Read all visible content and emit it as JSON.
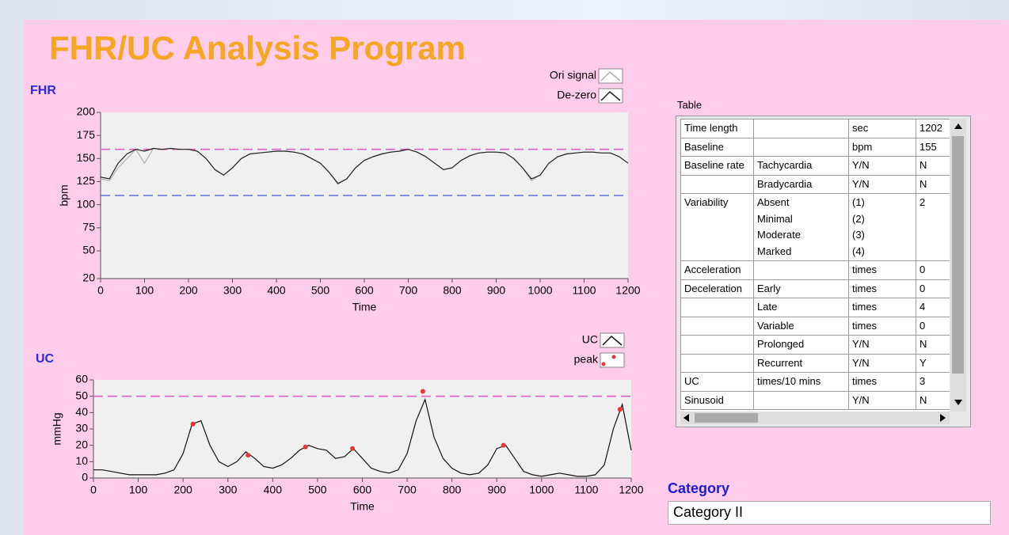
{
  "header": {
    "title": "FHR/UC Analysis Program"
  },
  "chart_data": [
    {
      "type": "line",
      "title": "FHR",
      "ylabel": "bpm",
      "xlabel": "Time",
      "xlim": [
        0,
        1200
      ],
      "ylim": [
        20,
        200
      ],
      "xticks": [
        0,
        100,
        200,
        300,
        400,
        500,
        600,
        700,
        800,
        900,
        1000,
        1100,
        1200
      ],
      "yticks": [
        20,
        50,
        75,
        100,
        125,
        150,
        175,
        200
      ],
      "x": [
        0,
        20,
        40,
        60,
        80,
        100,
        120,
        140,
        160,
        180,
        200,
        220,
        240,
        260,
        280,
        300,
        320,
        340,
        360,
        380,
        400,
        420,
        440,
        460,
        480,
        500,
        520,
        540,
        560,
        580,
        600,
        620,
        640,
        660,
        680,
        700,
        720,
        740,
        760,
        780,
        800,
        820,
        840,
        860,
        880,
        900,
        920,
        940,
        960,
        980,
        1000,
        1020,
        1040,
        1060,
        1080,
        1100,
        1120,
        1140,
        1160,
        1180,
        1200
      ],
      "series": [
        {
          "name": "Ori signal",
          "color": "#b0b0b0",
          "values": [
            128,
            126,
            140,
            150,
            160,
            145,
            161,
            160,
            161,
            160,
            160,
            158,
            150,
            138,
            132,
            140,
            150,
            155,
            156,
            157,
            158,
            158,
            157,
            155,
            150,
            145,
            135,
            122,
            128,
            140,
            148,
            152,
            155,
            157,
            158,
            160,
            157,
            152,
            145,
            138,
            140,
            148,
            153,
            156,
            157,
            157,
            156,
            150,
            140,
            126,
            132,
            145,
            152,
            155,
            156,
            157,
            157,
            156,
            156,
            152,
            145
          ]
        },
        {
          "name": "De-zero",
          "color": "#222222",
          "values": [
            130,
            128,
            145,
            155,
            160,
            158,
            161,
            160,
            161,
            160,
            160,
            158,
            150,
            138,
            132,
            140,
            150,
            155,
            156,
            157,
            158,
            158,
            157,
            155,
            150,
            145,
            135,
            123,
            128,
            140,
            148,
            152,
            155,
            157,
            158,
            160,
            157,
            152,
            145,
            138,
            140,
            148,
            153,
            156,
            157,
            157,
            156,
            150,
            140,
            128,
            132,
            145,
            152,
            155,
            156,
            157,
            157,
            156,
            156,
            152,
            145
          ]
        }
      ],
      "hlines": [
        {
          "value": 160,
          "color": "#e060c0"
        },
        {
          "value": 110,
          "color": "#6070e0"
        }
      ]
    },
    {
      "type": "line",
      "title": "UC",
      "ylabel": "mmHg",
      "xlabel": "Time",
      "xlim": [
        0,
        1200
      ],
      "ylim": [
        0,
        60
      ],
      "xticks": [
        0,
        100,
        200,
        300,
        400,
        500,
        600,
        700,
        800,
        900,
        1000,
        1100,
        1200
      ],
      "yticks": [
        0,
        10,
        20,
        30,
        40,
        50,
        60
      ],
      "x": [
        0,
        20,
        40,
        60,
        80,
        100,
        120,
        140,
        160,
        180,
        200,
        220,
        240,
        260,
        280,
        300,
        320,
        340,
        360,
        380,
        400,
        420,
        440,
        460,
        480,
        500,
        520,
        540,
        560,
        580,
        600,
        620,
        640,
        660,
        680,
        700,
        720,
        740,
        760,
        780,
        800,
        820,
        840,
        860,
        880,
        900,
        920,
        940,
        960,
        980,
        1000,
        1020,
        1040,
        1060,
        1080,
        1100,
        1120,
        1140,
        1160,
        1180,
        1200
      ],
      "series": [
        {
          "name": "UC",
          "color": "#111111",
          "values": [
            5,
            5,
            4,
            3,
            2,
            2,
            2,
            2,
            3,
            5,
            15,
            33,
            35,
            20,
            10,
            7,
            10,
            16,
            12,
            7,
            6,
            8,
            12,
            17,
            20,
            18,
            17,
            12,
            13,
            18,
            12,
            6,
            4,
            3,
            5,
            15,
            35,
            48,
            25,
            12,
            6,
            3,
            2,
            3,
            8,
            18,
            20,
            12,
            4,
            2,
            1,
            2,
            3,
            2,
            1,
            1,
            2,
            8,
            30,
            45,
            17
          ]
        },
        {
          "name": "peak",
          "color": "#ee3333",
          "marker": "point",
          "x": [
            222,
            345,
            473,
            578,
            735,
            915,
            1175
          ],
          "values": [
            33,
            14,
            19,
            18,
            53,
            20,
            42
          ]
        }
      ],
      "hlines": [
        {
          "value": 50,
          "color": "#e060c0"
        }
      ]
    }
  ],
  "table": {
    "title": "Table",
    "rows": [
      [
        "Time length",
        null,
        "sec",
        1202
      ],
      [
        "Baseline",
        null,
        "bpm",
        155
      ],
      [
        "Baseline rate",
        "Tachycardia",
        "Y/N",
        "N"
      ],
      [
        null,
        "Bradycardia",
        "Y/N",
        "N"
      ],
      [
        "Variability",
        [
          "Absent",
          "Minimal",
          "Moderate",
          "Marked"
        ],
        [
          "(1)",
          "(2)",
          "(3)",
          "(4)"
        ],
        2
      ],
      [
        "Acceleration",
        null,
        "times",
        0
      ],
      [
        "Deceleration",
        "Early",
        "times",
        0
      ],
      [
        null,
        "Late",
        "times",
        4
      ],
      [
        null,
        "Variable",
        "times",
        0
      ],
      [
        null,
        "Prolonged",
        "Y/N",
        "N"
      ],
      [
        null,
        "Recurrent",
        "Y/N",
        "Y"
      ],
      [
        "UC",
        "times/10 mins",
        "times",
        3
      ],
      [
        "Sinusoid",
        null,
        "Y/N",
        "N"
      ]
    ]
  },
  "category": {
    "label": "Category",
    "value": "Category II"
  }
}
